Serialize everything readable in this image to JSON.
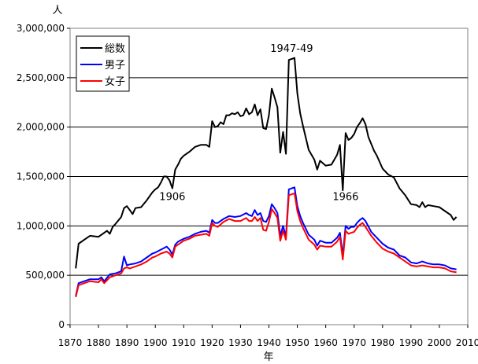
{
  "chart_data": {
    "type": "line",
    "title": "",
    "xlabel": "年",
    "ylabel": "人",
    "xlim": [
      1870,
      2010
    ],
    "ylim": [
      0,
      3000000
    ],
    "x_ticks": [
      1870,
      1880,
      1890,
      1900,
      1910,
      1920,
      1930,
      1940,
      1950,
      1960,
      1970,
      1980,
      1990,
      2000,
      2010
    ],
    "y_ticks": [
      0,
      500000,
      1000000,
      1500000,
      2000000,
      2500000,
      3000000
    ],
    "y_tick_labels": [
      "0",
      "500,000",
      "1,000,000",
      "1,500,000",
      "2,000,000",
      "2,500,000",
      "3,000,000"
    ],
    "grid": "horizontal",
    "legend_position": "top-left",
    "annotations": [
      {
        "text": "1947-49",
        "x": 1948,
        "y": 2760000
      },
      {
        "text": "1906",
        "x": 1906,
        "y": 1260000
      },
      {
        "text": "1966",
        "x": 1967,
        "y": 1260000
      }
    ],
    "series": [
      {
        "name": "総数",
        "color": "#000000",
        "x": [
          1872,
          1873,
          1875,
          1877,
          1880,
          1883,
          1884,
          1885,
          1886,
          1888,
          1889,
          1890,
          1891,
          1892,
          1893,
          1895,
          1897,
          1898,
          1899,
          1900,
          1901,
          1902,
          1903,
          1904,
          1905,
          1906,
          1907,
          1908,
          1909,
          1910,
          1912,
          1914,
          1916,
          1918,
          1919,
          1920,
          1921,
          1922,
          1923,
          1924,
          1925,
          1926,
          1927,
          1928,
          1929,
          1930,
          1931,
          1932,
          1933,
          1934,
          1935,
          1936,
          1937,
          1938,
          1939,
          1940,
          1941,
          1942,
          1943,
          1944,
          1945,
          1946,
          1947,
          1948,
          1949,
          1950,
          1951,
          1952,
          1954,
          1956,
          1957,
          1958,
          1960,
          1962,
          1964,
          1965,
          1966,
          1967,
          1968,
          1969,
          1970,
          1971,
          1972,
          1973,
          1974,
          1975,
          1976,
          1977,
          1978,
          1980,
          1982,
          1984,
          1986,
          1988,
          1990,
          1992,
          1993,
          1994,
          1995,
          1996,
          1998,
          2000,
          2002,
          2004,
          2005,
          2006
        ],
        "values": [
          570000,
          820000,
          860000,
          900000,
          890000,
          950000,
          920000,
          990000,
          1020000,
          1090000,
          1180000,
          1200000,
          1160000,
          1120000,
          1180000,
          1190000,
          1260000,
          1300000,
          1340000,
          1370000,
          1390000,
          1440000,
          1500000,
          1500000,
          1460000,
          1380000,
          1570000,
          1620000,
          1680000,
          1710000,
          1750000,
          1800000,
          1820000,
          1820000,
          1800000,
          2060000,
          2000000,
          2010000,
          2050000,
          2030000,
          2120000,
          2120000,
          2140000,
          2130000,
          2150000,
          2110000,
          2120000,
          2190000,
          2130000,
          2150000,
          2230000,
          2120000,
          2180000,
          1990000,
          1980000,
          2120000,
          2390000,
          2300000,
          2200000,
          1740000,
          1950000,
          1730000,
          2680000,
          2690000,
          2700000,
          2340000,
          2140000,
          2010000,
          1770000,
          1670000,
          1570000,
          1660000,
          1610000,
          1620000,
          1720000,
          1820000,
          1360000,
          1940000,
          1870000,
          1890000,
          1930000,
          2000000,
          2040000,
          2090000,
          2030000,
          1900000,
          1830000,
          1760000,
          1710000,
          1580000,
          1520000,
          1490000,
          1380000,
          1310000,
          1220000,
          1210000,
          1190000,
          1240000,
          1190000,
          1210000,
          1200000,
          1190000,
          1150000,
          1110000,
          1060000,
          1090000
        ]
      },
      {
        "name": "男子",
        "color": "#0000ff",
        "x": [
          1872,
          1873,
          1875,
          1877,
          1880,
          1881,
          1882,
          1884,
          1886,
          1888,
          1889,
          1890,
          1891,
          1893,
          1895,
          1897,
          1899,
          1900,
          1902,
          1904,
          1905,
          1906,
          1907,
          1908,
          1910,
          1912,
          1914,
          1916,
          1918,
          1919,
          1920,
          1921,
          1922,
          1924,
          1926,
          1928,
          1930,
          1932,
          1933,
          1934,
          1935,
          1936,
          1937,
          1938,
          1939,
          1940,
          1941,
          1942,
          1943,
          1944,
          1945,
          1946,
          1947,
          1948,
          1949,
          1950,
          1951,
          1952,
          1954,
          1956,
          1957,
          1958,
          1960,
          1962,
          1964,
          1965,
          1966,
          1967,
          1968,
          1969,
          1970,
          1971,
          1972,
          1973,
          1974,
          1976,
          1978,
          1980,
          1982,
          1984,
          1986,
          1988,
          1990,
          1992,
          1994,
          1996,
          1998,
          2000,
          2002,
          2004,
          2006
        ],
        "values": [
          290000,
          420000,
          440000,
          460000,
          460000,
          480000,
          440000,
          510000,
          520000,
          540000,
          690000,
          600000,
          610000,
          620000,
          640000,
          680000,
          720000,
          730000,
          760000,
          790000,
          760000,
          710000,
          810000,
          840000,
          870000,
          890000,
          920000,
          940000,
          950000,
          930000,
          1060000,
          1030000,
          1030000,
          1070000,
          1100000,
          1090000,
          1100000,
          1130000,
          1110000,
          1100000,
          1160000,
          1110000,
          1130000,
          1050000,
          1040000,
          1100000,
          1220000,
          1180000,
          1130000,
          900000,
          1000000,
          890000,
          1370000,
          1380000,
          1390000,
          1200000,
          1100000,
          1030000,
          910000,
          860000,
          800000,
          850000,
          830000,
          830000,
          880000,
          930000,
          700000,
          1000000,
          970000,
          990000,
          990000,
          1030000,
          1060000,
          1080000,
          1050000,
          940000,
          880000,
          820000,
          780000,
          760000,
          700000,
          680000,
          630000,
          620000,
          640000,
          620000,
          610000,
          610000,
          600000,
          570000,
          560000
        ]
      },
      {
        "name": "女子",
        "color": "#ff0000",
        "x": [
          1872,
          1873,
          1875,
          1877,
          1880,
          1881,
          1882,
          1884,
          1886,
          1888,
          1889,
          1890,
          1891,
          1893,
          1895,
          1897,
          1899,
          1900,
          1902,
          1904,
          1905,
          1906,
          1907,
          1908,
          1910,
          1912,
          1914,
          1916,
          1918,
          1919,
          1920,
          1921,
          1922,
          1924,
          1926,
          1928,
          1930,
          1932,
          1933,
          1934,
          1935,
          1936,
          1937,
          1938,
          1939,
          1940,
          1941,
          1942,
          1943,
          1944,
          1945,
          1946,
          1947,
          1948,
          1949,
          1950,
          1951,
          1952,
          1954,
          1956,
          1957,
          1958,
          1960,
          1962,
          1964,
          1965,
          1966,
          1967,
          1968,
          1969,
          1970,
          1971,
          1972,
          1973,
          1974,
          1976,
          1978,
          1980,
          1982,
          1984,
          1986,
          1988,
          1990,
          1992,
          1994,
          1996,
          1998,
          2000,
          2002,
          2004,
          2006
        ],
        "values": [
          280000,
          400000,
          420000,
          440000,
          430000,
          460000,
          420000,
          480000,
          500000,
          520000,
          570000,
          580000,
          570000,
          590000,
          610000,
          640000,
          680000,
          690000,
          720000,
          740000,
          720000,
          680000,
          790000,
          810000,
          850000,
          870000,
          900000,
          910000,
          920000,
          900000,
          1030000,
          1000000,
          990000,
          1040000,
          1070000,
          1050000,
          1050000,
          1080000,
          1050000,
          1050000,
          1090000,
          1050000,
          1080000,
          960000,
          950000,
          1040000,
          1170000,
          1130000,
          1080000,
          850000,
          950000,
          860000,
          1310000,
          1320000,
          1330000,
          1150000,
          1050000,
          980000,
          860000,
          810000,
          760000,
          800000,
          790000,
          790000,
          840000,
          890000,
          660000,
          950000,
          920000,
          930000,
          940000,
          980000,
          1010000,
          1030000,
          990000,
          900000,
          830000,
          770000,
          740000,
          720000,
          680000,
          640000,
          600000,
          590000,
          600000,
          590000,
          580000,
          580000,
          570000,
          540000,
          530000
        ]
      }
    ]
  }
}
